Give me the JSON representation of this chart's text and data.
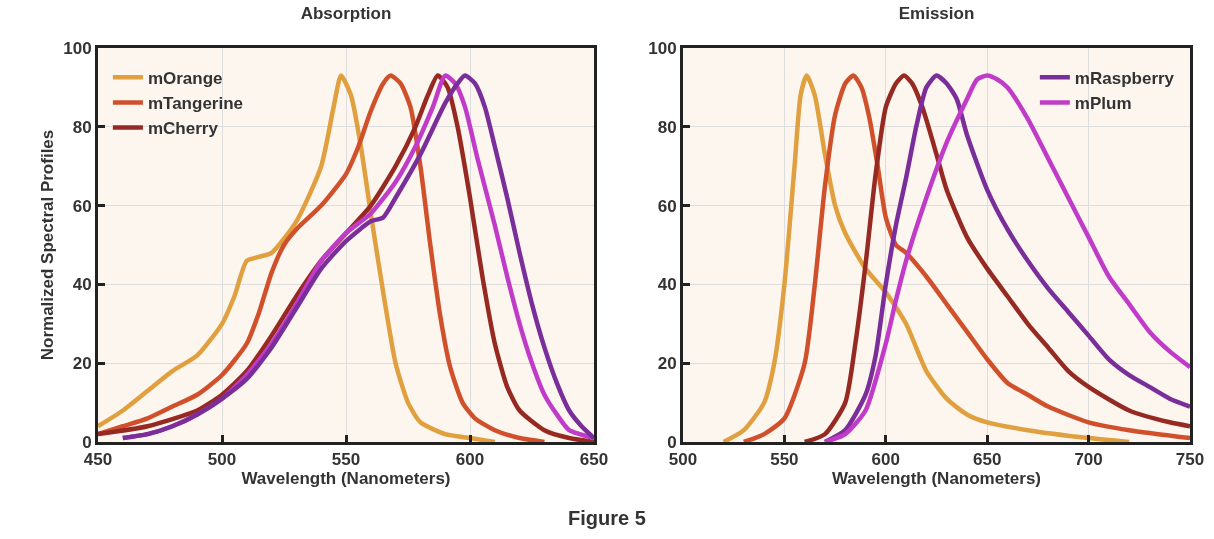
{
  "chart_data": [
    {
      "type": "line",
      "title": "Absorption",
      "xlabel": "Wavelength (Nanometers)",
      "ylabel": "Normalized Spectral Profiles",
      "xlim": [
        450,
        650
      ],
      "xticks": [
        450,
        500,
        550,
        600,
        650
      ],
      "ylim": [
        0,
        100
      ],
      "yticks": [
        0,
        20,
        40,
        60,
        80,
        100
      ],
      "grid": true,
      "legend": "top left",
      "line_style": "solid",
      "marker": "none",
      "annotations": [
        "Figure 5"
      ],
      "series": [
        {
          "name": "mOrange",
          "color": "#e0a040",
          "x": [
            450,
            460,
            470,
            480,
            490,
            500,
            505,
            510,
            515,
            520,
            530,
            540,
            545,
            548,
            552,
            556,
            560,
            565,
            570,
            575,
            580,
            590,
            600,
            610
          ],
          "values": [
            4,
            8,
            13,
            18,
            22,
            30,
            37,
            46,
            47,
            48,
            56,
            70,
            85,
            93,
            88,
            75,
            58,
            38,
            20,
            10,
            5,
            2,
            1,
            0
          ]
        },
        {
          "name": "mTangerine",
          "color": "#d0502c",
          "x": [
            450,
            460,
            470,
            480,
            490,
            500,
            510,
            515,
            520,
            525,
            530,
            540,
            550,
            555,
            560,
            565,
            568,
            572,
            576,
            580,
            584,
            588,
            592,
            597,
            602,
            610,
            620,
            630
          ],
          "values": [
            2,
            4,
            6,
            9,
            12,
            17,
            25,
            33,
            43,
            50,
            54,
            60,
            68,
            75,
            84,
            91,
            93,
            91,
            85,
            70,
            50,
            32,
            19,
            10,
            6,
            3,
            1,
            0
          ]
        },
        {
          "name": "mCherry",
          "color": "#962a22",
          "x": [
            450,
            470,
            490,
            500,
            510,
            520,
            530,
            540,
            550,
            560,
            570,
            578,
            583,
            587,
            591,
            595,
            600,
            605,
            610,
            615,
            620,
            630,
            640,
            650
          ],
          "values": [
            2,
            4,
            8,
            12,
            18,
            27,
            37,
            46,
            53,
            60,
            70,
            80,
            88,
            93,
            90,
            80,
            62,
            42,
            25,
            14,
            8,
            3,
            1,
            0
          ]
        },
        {
          "color": "#c03cc8",
          "x": [
            460,
            470,
            480,
            490,
            500,
            510,
            520,
            530,
            540,
            550,
            560,
            570,
            578,
            585,
            590,
            594,
            598,
            603,
            610,
            615,
            620,
            625,
            630,
            635,
            640,
            650
          ],
          "values": [
            1,
            2,
            4,
            7,
            11,
            17,
            25,
            35,
            46,
            53,
            58,
            66,
            75,
            85,
            93,
            91,
            85,
            72,
            55,
            42,
            30,
            20,
            12,
            7,
            3,
            1
          ]
        },
        {
          "color": "#7a2e9a",
          "x": [
            460,
            470,
            480,
            490,
            500,
            510,
            520,
            530,
            540,
            550,
            560,
            565,
            570,
            580,
            590,
            595,
            598,
            602,
            606,
            610,
            615,
            620,
            625,
            630,
            635,
            640,
            645,
            650
          ],
          "values": [
            1,
            2,
            4,
            7,
            11,
            16,
            24,
            34,
            44,
            51,
            56,
            57,
            62,
            73,
            86,
            91,
            93,
            91,
            85,
            75,
            62,
            48,
            35,
            24,
            15,
            8,
            4,
            1
          ]
        }
      ]
    },
    {
      "type": "line",
      "title": "Emission",
      "xlabel": "Wavelength (Nanometers)",
      "xlim": [
        500,
        750
      ],
      "xticks": [
        500,
        550,
        600,
        650,
        700,
        750
      ],
      "ylim": [
        0,
        100
      ],
      "yticks": [
        0,
        20,
        40,
        60,
        80,
        100
      ],
      "grid": true,
      "legend": "top right",
      "line_style": "solid",
      "marker": "none",
      "series": [
        {
          "color": "#e0a040",
          "x": [
            520,
            530,
            540,
            545,
            550,
            555,
            558,
            561,
            565,
            570,
            575,
            580,
            590,
            600,
            610,
            620,
            630,
            640,
            650,
            670,
            700,
            720
          ],
          "values": [
            0,
            3,
            10,
            20,
            40,
            70,
            88,
            93,
            88,
            73,
            60,
            53,
            44,
            38,
            30,
            18,
            11,
            7,
            5,
            3,
            1,
            0
          ]
        },
        {
          "color": "#d0502c",
          "x": [
            530,
            540,
            550,
            560,
            565,
            570,
            575,
            580,
            584,
            588,
            592,
            596,
            600,
            605,
            610,
            620,
            630,
            640,
            650,
            660,
            670,
            680,
            700,
            720,
            750
          ],
          "values": [
            0,
            2,
            6,
            20,
            40,
            65,
            83,
            91,
            93,
            90,
            82,
            70,
            57,
            50,
            48,
            42,
            35,
            28,
            21,
            15,
            12,
            9,
            5,
            3,
            1
          ]
        },
        {
          "color": "#962a22",
          "x": [
            560,
            570,
            580,
            585,
            590,
            595,
            600,
            605,
            609,
            613,
            618,
            625,
            630,
            640,
            650,
            660,
            670,
            680,
            690,
            700,
            720,
            740,
            750
          ],
          "values": [
            0,
            2,
            10,
            25,
            45,
            68,
            85,
            91,
            93,
            91,
            85,
            73,
            64,
            52,
            44,
            37,
            30,
            24,
            18,
            14,
            8,
            5,
            4
          ]
        },
        {
          "name": "mRaspberry",
          "color": "#7a2e9a",
          "x": [
            570,
            580,
            590,
            595,
            600,
            605,
            610,
            615,
            620,
            625,
            630,
            635,
            640,
            650,
            660,
            670,
            680,
            690,
            700,
            710,
            720,
            730,
            740,
            750
          ],
          "values": [
            0,
            3,
            12,
            22,
            40,
            55,
            67,
            80,
            90,
            93,
            91,
            87,
            78,
            64,
            54,
            46,
            39,
            33,
            27,
            21,
            17,
            14,
            11,
            9
          ]
        },
        {
          "name": "mPlum",
          "color": "#c03cc8",
          "x": [
            570,
            580,
            590,
            600,
            605,
            610,
            620,
            630,
            640,
            645,
            650,
            655,
            660,
            670,
            680,
            690,
            700,
            710,
            720,
            730,
            740,
            750
          ],
          "values": [
            0,
            2,
            8,
            25,
            36,
            46,
            62,
            76,
            87,
            92,
            93,
            92,
            90,
            82,
            72,
            62,
            52,
            42,
            35,
            28,
            23,
            19
          ]
        }
      ]
    }
  ]
}
